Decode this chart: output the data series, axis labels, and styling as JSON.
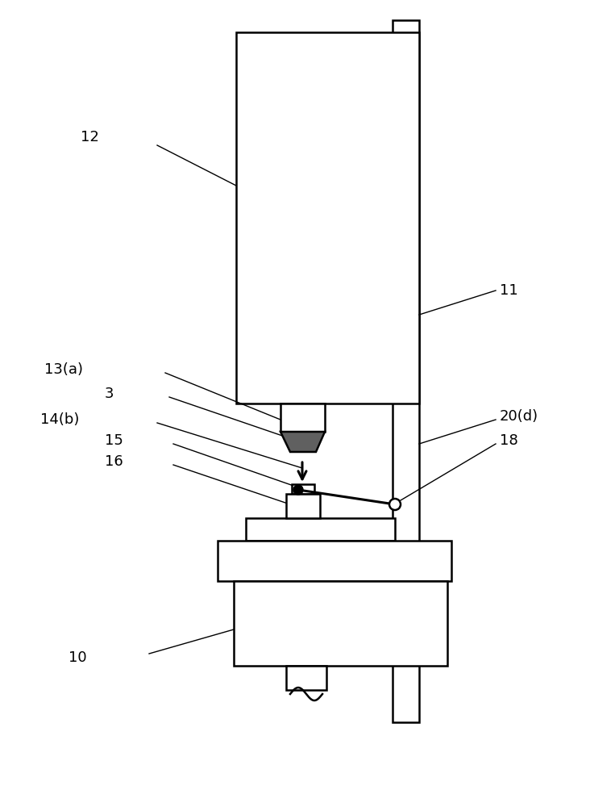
{
  "bg_color": "#ffffff",
  "line_color": "#000000",
  "gray_color": "#606060",
  "fig_width": 7.32,
  "fig_height": 10.0,
  "label_texts": {
    "12": "12",
    "11": "11",
    "13a": "13(a)",
    "3": "3",
    "14b": "14(b)",
    "15": "15",
    "16": "16",
    "20d": "20(d)",
    "18": "18",
    "10": "10"
  }
}
